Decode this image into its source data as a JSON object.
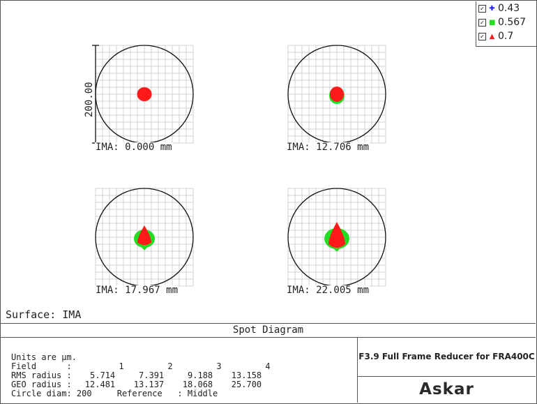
{
  "legend": {
    "items": [
      {
        "label": "0.43",
        "color": "#1a1aff",
        "marker": "+"
      },
      {
        "label": "0.567",
        "color": "#22dd22",
        "marker": "■"
      },
      {
        "label": "0.7",
        "color": "#ff1a1a",
        "marker": "▲"
      }
    ]
  },
  "panels": [
    {
      "label": "IMA: 0.000 mm",
      "spots": {
        "green": {
          "w": 0.0,
          "h": 0.0,
          "skew": 0
        },
        "red": {
          "w": 21,
          "h": 20,
          "peak": 0
        }
      }
    },
    {
      "label": "IMA: 12.706 mm",
      "spots": {
        "green": {
          "w": 22,
          "h": 24,
          "skew": 0
        },
        "red": {
          "w": 20,
          "h": 22,
          "peak": 0
        }
      }
    },
    {
      "label": "IMA: 17.967 mm",
      "spots": {
        "green": {
          "w": 30,
          "h": 26,
          "skew": 0
        },
        "red": {
          "w": 20,
          "h": 30,
          "peak": 1
        }
      }
    },
    {
      "label": "IMA: 22.005 mm",
      "spots": {
        "green": {
          "w": 36,
          "h": 30,
          "skew": 0
        },
        "red": {
          "w": 24,
          "h": 40,
          "peak": 1
        }
      }
    }
  ],
  "scale_bar": {
    "label": "200.00"
  },
  "surface": "Surface: IMA",
  "title": "Spot Diagram",
  "info": {
    "units": "Units are µm.",
    "field_label": "Field",
    "fields": [
      "1",
      "2",
      "3",
      "4"
    ],
    "rms_label": "RMS radius",
    "rms": [
      "5.714",
      "7.391",
      "9.188",
      "13.158"
    ],
    "geo_label": "GEO radius",
    "geo": [
      "12.481",
      "13.137",
      "18.068",
      "25.700"
    ],
    "circle_diam": "Circle diam: 200",
    "reference": "Reference   : Middle"
  },
  "product": "F3.9 Full Frame Reducer for FRA400C",
  "brand": "Askar"
}
